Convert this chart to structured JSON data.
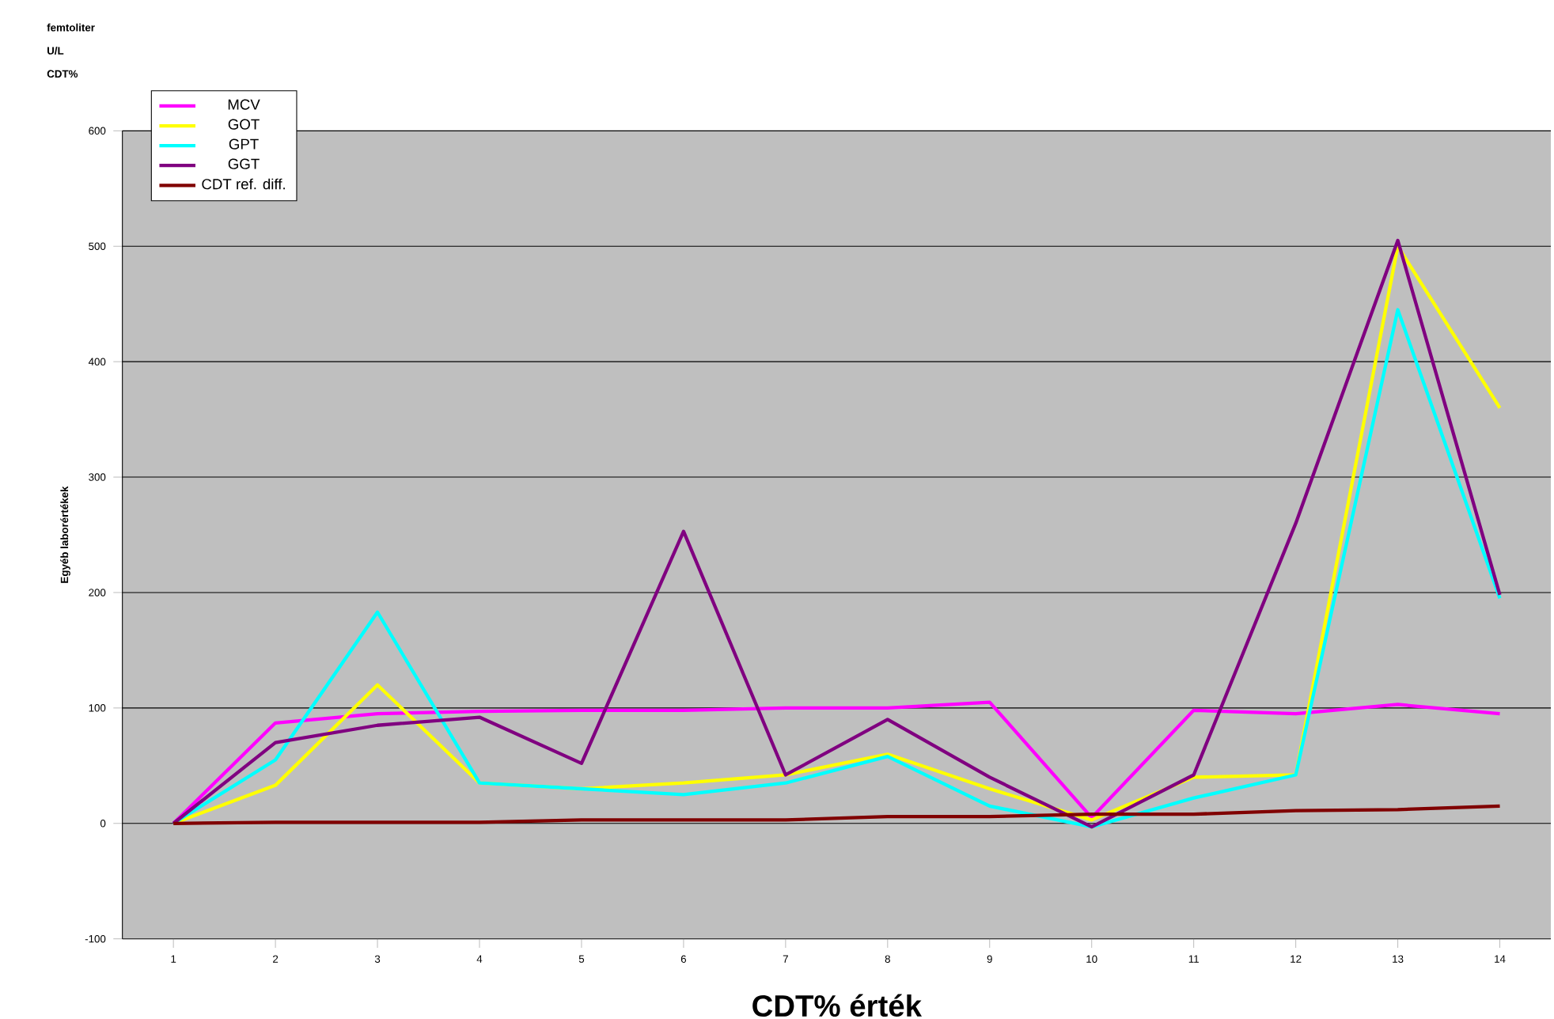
{
  "chart_data": {
    "type": "line",
    "xlabel": "CDT% érték",
    "ylabel": "Egyéb laborértékek",
    "annotations": [
      "femtoliter",
      "U/L",
      "CDT%"
    ],
    "categories": [
      "1",
      "2",
      "3",
      "4",
      "5",
      "6",
      "7",
      "8",
      "9",
      "10",
      "11",
      "12",
      "13",
      "14"
    ],
    "series": [
      {
        "name": "MCV",
        "color": "#ff00ff",
        "values": [
          0,
          87,
          95,
          97,
          98,
          98,
          100,
          100,
          105,
          5,
          98,
          95,
          103,
          95
        ]
      },
      {
        "name": "GOT",
        "color": "#ffff00",
        "values": [
          0,
          33,
          120,
          35,
          30,
          35,
          42,
          60,
          30,
          3,
          40,
          42,
          500,
          360
        ]
      },
      {
        "name": "GPT",
        "color": "#00ffff",
        "values": [
          0,
          55,
          183,
          35,
          30,
          25,
          35,
          58,
          15,
          -3,
          22,
          42,
          445,
          195
        ]
      },
      {
        "name": "GGT",
        "color": "#800080",
        "values": [
          0,
          70,
          85,
          92,
          52,
          253,
          42,
          90,
          40,
          -3,
          42,
          260,
          505,
          198
        ]
      },
      {
        "name": "CDT ref. diff.",
        "color": "#800000",
        "values": [
          0,
          1,
          1,
          1,
          3,
          3,
          3,
          6,
          6,
          8,
          8,
          11,
          12,
          15
        ]
      }
    ],
    "ylim": [
      -100,
      600
    ],
    "yticks": [
      -100,
      0,
      100,
      200,
      300,
      400,
      500,
      600
    ],
    "grid": "y",
    "legend": "top left",
    "marker": "none",
    "line_style": "solid"
  }
}
